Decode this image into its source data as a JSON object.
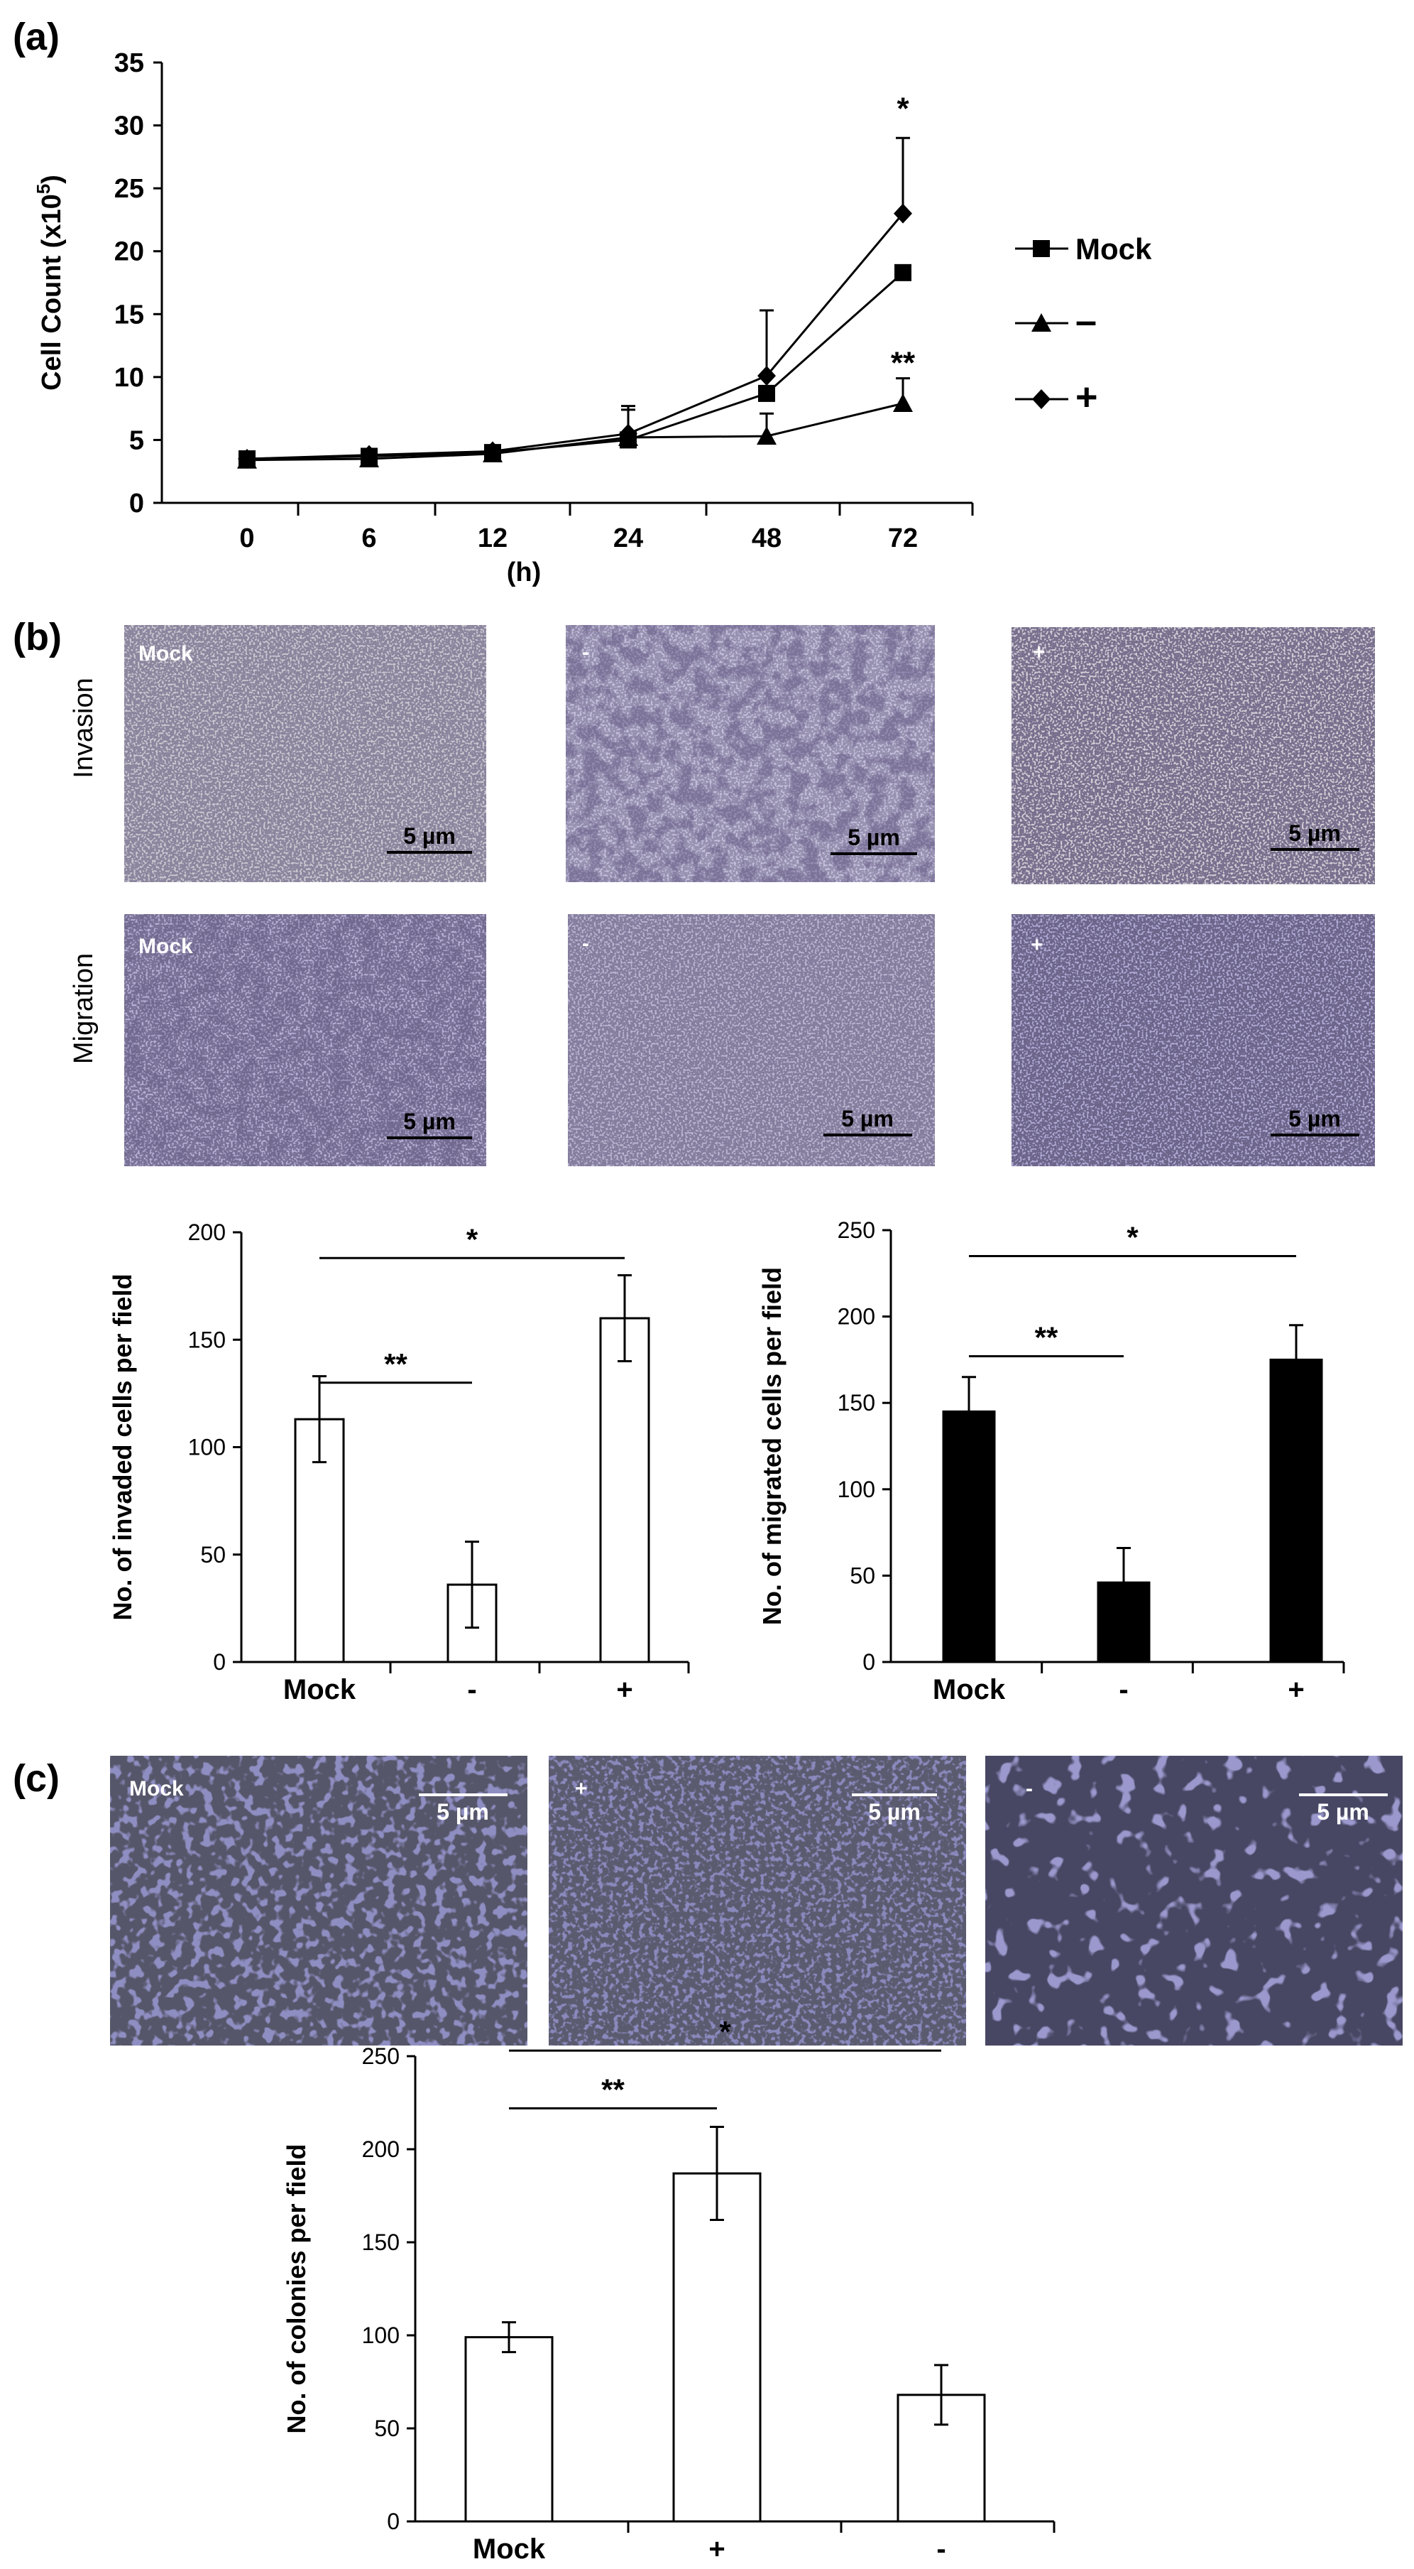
{
  "panel_labels": {
    "a": "(a)",
    "b": "(b)",
    "c": "(c)"
  },
  "micrographs": {
    "b_rows": [
      "Invasion",
      "Migration"
    ],
    "b_labels": [
      "Mock",
      "-",
      "+"
    ],
    "c_labels": [
      "Mock",
      "+",
      "-"
    ],
    "scale_bar": "5 µm",
    "stain_color": "#8a83c2"
  },
  "chart_data": [
    {
      "id": "growth",
      "type": "line",
      "ylabel": "Cell Count (x10",
      "ylabel_sup": "5",
      "ylabel_close": ")",
      "xlabel": "(h)",
      "x": [
        "0",
        "6",
        "12",
        "24",
        "48",
        "72"
      ],
      "ylim": [
        0,
        35
      ],
      "yticks": [
        "0",
        "5",
        "10",
        "15",
        "20",
        "25",
        "30",
        "35"
      ],
      "series": [
        {
          "name": "Mock",
          "marker": "square",
          "values": [
            3.5,
            3.7,
            4.0,
            5.0,
            8.7,
            18.3
          ],
          "errors": [
            0,
            0,
            0,
            0,
            0,
            0
          ]
        },
        {
          "name": "–",
          "marker": "triangle",
          "values": [
            3.4,
            3.5,
            3.9,
            5.2,
            5.3,
            7.9
          ],
          "errors": [
            0,
            0,
            0,
            2.5,
            1.8,
            2.0
          ]
        },
        {
          "name": "+",
          "marker": "diamond",
          "values": [
            3.5,
            3.8,
            4.1,
            5.5,
            10.1,
            23.0
          ],
          "errors": [
            0,
            0,
            0,
            1.9,
            5.2,
            6.0
          ]
        }
      ],
      "annotations": [
        {
          "x": "72",
          "y": 30.5,
          "text": "*"
        },
        {
          "x": "72",
          "y": 10.3,
          "text": "**"
        }
      ]
    },
    {
      "id": "invaded",
      "type": "bar",
      "ylabel": "No. of invaded cells per field",
      "categories": [
        "Mock",
        "-",
        "+"
      ],
      "values": [
        113,
        36,
        160
      ],
      "errors": [
        20,
        20,
        20
      ],
      "ylim": [
        0,
        200
      ],
      "yticks": [
        "0",
        "50",
        "100",
        "150",
        "200"
      ],
      "bar_color": "#ffffff",
      "significance": [
        {
          "from": 0,
          "to": 1,
          "level": 130,
          "text": "**"
        },
        {
          "from": 0,
          "to": 2,
          "level": 188,
          "text": "*"
        }
      ]
    },
    {
      "id": "migrated",
      "type": "bar",
      "ylabel": "No. of migrated cells per field",
      "categories": [
        "Mock",
        "-",
        "+"
      ],
      "values": [
        145,
        46,
        175
      ],
      "errors": [
        20,
        20,
        20
      ],
      "ylim": [
        0,
        250
      ],
      "yticks": [
        "0",
        "50",
        "100",
        "150",
        "200",
        "250"
      ],
      "bar_color": "#000000",
      "significance": [
        {
          "from": 0,
          "to": 1,
          "level": 177,
          "text": "**"
        },
        {
          "from": 0,
          "to": 2,
          "level": 235,
          "text": "*"
        }
      ]
    },
    {
      "id": "colonies",
      "type": "bar",
      "ylabel": "No. of colonies per field",
      "categories": [
        "Mock",
        "+",
        "-"
      ],
      "values": [
        99,
        187,
        68
      ],
      "errors": [
        8,
        25,
        16
      ],
      "ylim": [
        0,
        250
      ],
      "yticks": [
        "0",
        "50",
        "100",
        "150",
        "200",
        "250"
      ],
      "bar_color": "#ffffff",
      "significance": [
        {
          "from": 0,
          "to": 1,
          "level": 222,
          "text": "**"
        },
        {
          "from": 0,
          "to": 2,
          "level": 253,
          "text": "*"
        }
      ]
    }
  ]
}
